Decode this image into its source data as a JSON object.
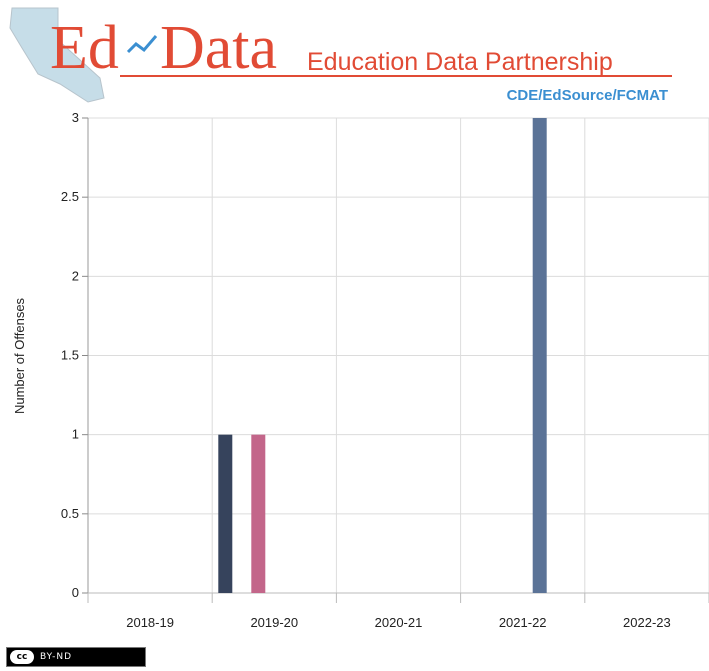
{
  "header": {
    "logo_main": "Ed",
    "logo_main2": "Data",
    "logo_tagline": "Education Data Partnership",
    "partners": "CDE/EdSource/FCMAT"
  },
  "chart_data": {
    "type": "bar",
    "categories": [
      "2018-19",
      "2019-20",
      "2020-21",
      "2021-22",
      "2022-23"
    ],
    "ylabel": "Number of Offenses",
    "ylim": [
      0,
      3
    ],
    "yticks": [
      "0",
      "0.5",
      "1",
      "1.5",
      "2",
      "2.5",
      "3"
    ],
    "grid": true,
    "series": [
      {
        "values": [
          0,
          1,
          0,
          0,
          0
        ],
        "color": "#36435c"
      },
      {
        "values": [
          0,
          1,
          0,
          0,
          0
        ],
        "color": "#c3668a"
      },
      {
        "values": [
          0,
          0,
          0,
          3,
          0
        ],
        "color": "#5b7397"
      }
    ]
  },
  "license": {
    "cc": "cc",
    "terms": "BY-ND"
  }
}
